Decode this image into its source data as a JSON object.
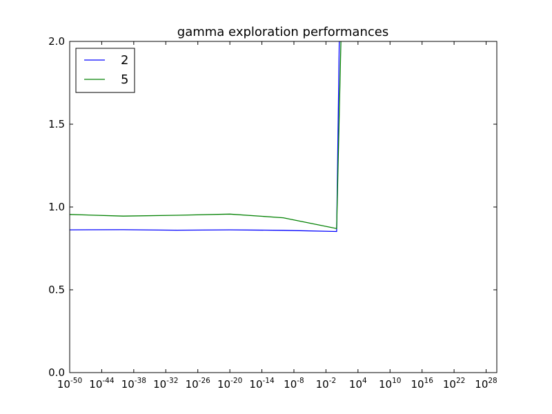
{
  "chart_data": {
    "type": "line",
    "title": "gamma exploration performances",
    "xlabel": "",
    "ylabel": "",
    "xscale": "log",
    "xlim_exponent": [
      -50,
      30
    ],
    "ylim": [
      0,
      2.0
    ],
    "grid": false,
    "legend_placement": "top-left",
    "x_ticks": [
      {
        "base": "10",
        "exp": "-50"
      },
      {
        "base": "10",
        "exp": "-44"
      },
      {
        "base": "10",
        "exp": "-38"
      },
      {
        "base": "10",
        "exp": "-32"
      },
      {
        "base": "10",
        "exp": "-26"
      },
      {
        "base": "10",
        "exp": "-20"
      },
      {
        "base": "10",
        "exp": "-14"
      },
      {
        "base": "10",
        "exp": "-8"
      },
      {
        "base": "10",
        "exp": "-2"
      },
      {
        "base": "10",
        "exp": "4"
      },
      {
        "base": "10",
        "exp": "10"
      },
      {
        "base": "10",
        "exp": "16"
      },
      {
        "base": "10",
        "exp": "22"
      },
      {
        "base": "10",
        "exp": "28"
      }
    ],
    "y_ticks": [
      "0.0",
      "0.5",
      "1.0",
      "1.5",
      "2.0"
    ],
    "series": [
      {
        "name": "2",
        "color": "#0000ff",
        "x_exponent": [
          -50,
          -40,
          -30,
          -20,
          -10,
          0,
          0.5
        ],
        "y": [
          0.862,
          0.863,
          0.86,
          0.862,
          0.859,
          0.852,
          2.0
        ]
      },
      {
        "name": "5",
        "color": "#008000",
        "x_exponent": [
          -50,
          -40,
          -30,
          -20,
          -10,
          0,
          0.8
        ],
        "y": [
          0.955,
          0.945,
          0.95,
          0.957,
          0.935,
          0.87,
          2.0
        ]
      }
    ]
  }
}
